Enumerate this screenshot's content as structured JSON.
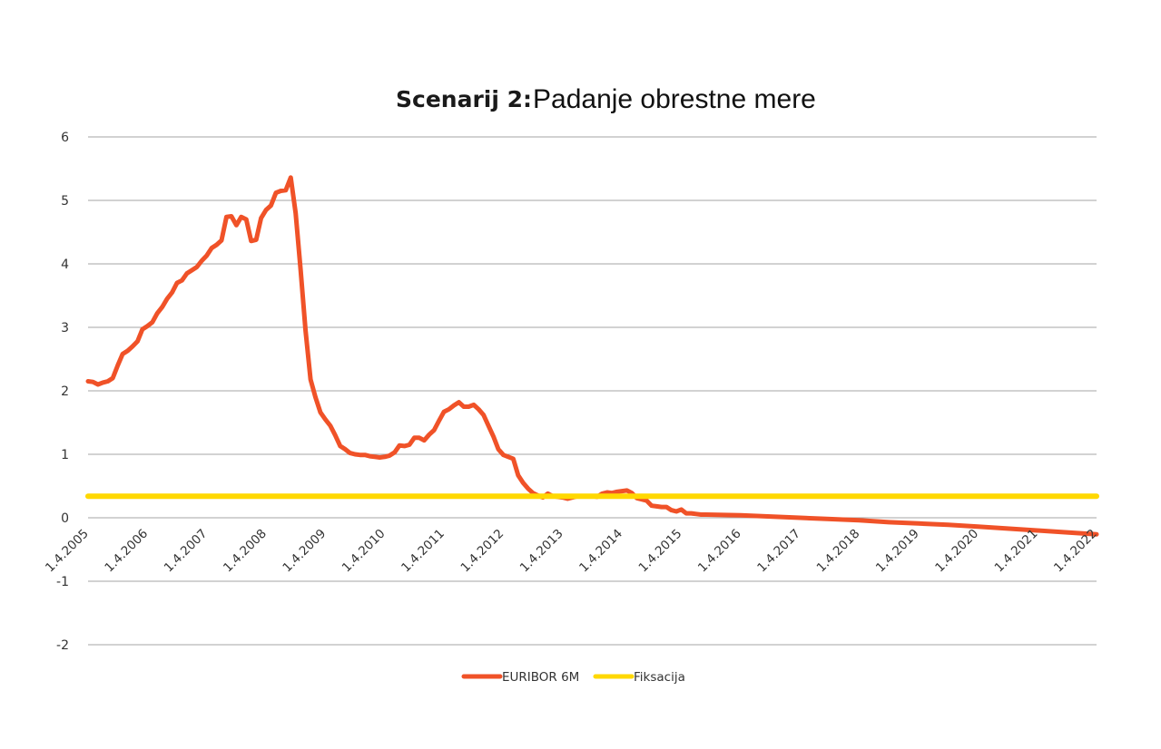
{
  "chart_data": {
    "type": "line",
    "title_prefix": "Scenarij 2:",
    "title_main": "Padanje obrestne mere",
    "xlabel": "",
    "ylabel": "",
    "ylim": [
      -2,
      6
    ],
    "yticks": [
      "6",
      "5",
      "4",
      "3",
      "2",
      "1",
      "0",
      "-1",
      "-2"
    ],
    "xlim": [
      "2005-04",
      "2022-04"
    ],
    "xticks": [
      "1.4.2005",
      "1.4.2006",
      "1.4.2007",
      "1.4.2008",
      "1.4.2009",
      "1.4.2010",
      "1.4.2011",
      "1.4.2012",
      "1.4.2013",
      "1.4.2014",
      "1.4.2015",
      "1.4.2016",
      "1.4.2017",
      "1.4.2018",
      "1.4.2019",
      "1.4.2020",
      "1.4.2021",
      "1.4.2022"
    ],
    "grid": true,
    "legend_position": "bottom",
    "series": [
      {
        "name": "EURIBOR 6M",
        "color": "#f05228",
        "points": [
          [
            "2005-04",
            2.15
          ],
          [
            "2005-05",
            2.14
          ],
          [
            "2005-06",
            2.1
          ],
          [
            "2005-07",
            2.13
          ],
          [
            "2005-08",
            2.15
          ],
          [
            "2005-09",
            2.2
          ],
          [
            "2005-10",
            2.4
          ],
          [
            "2005-11",
            2.58
          ],
          [
            "2005-12",
            2.63
          ],
          [
            "2006-01",
            2.7
          ],
          [
            "2006-02",
            2.78
          ],
          [
            "2006-03",
            2.97
          ],
          [
            "2006-04",
            3.02
          ],
          [
            "2006-05",
            3.08
          ],
          [
            "2006-06",
            3.22
          ],
          [
            "2006-07",
            3.32
          ],
          [
            "2006-08",
            3.45
          ],
          [
            "2006-09",
            3.55
          ],
          [
            "2006-10",
            3.7
          ],
          [
            "2006-11",
            3.74
          ],
          [
            "2006-12",
            3.85
          ],
          [
            "2007-01",
            3.9
          ],
          [
            "2007-02",
            3.95
          ],
          [
            "2007-03",
            4.05
          ],
          [
            "2007-04",
            4.13
          ],
          [
            "2007-05",
            4.25
          ],
          [
            "2007-06",
            4.3
          ],
          [
            "2007-07",
            4.37
          ],
          [
            "2007-08",
            4.74
          ],
          [
            "2007-09",
            4.75
          ],
          [
            "2007-10",
            4.61
          ],
          [
            "2007-11",
            4.74
          ],
          [
            "2007-12",
            4.7
          ],
          [
            "2008-01",
            4.36
          ],
          [
            "2008-02",
            4.38
          ],
          [
            "2008-03",
            4.72
          ],
          [
            "2008-04",
            4.85
          ],
          [
            "2008-05",
            4.92
          ],
          [
            "2008-06",
            5.12
          ],
          [
            "2008-07",
            5.15
          ],
          [
            "2008-08",
            5.16
          ],
          [
            "2008-09",
            5.36
          ],
          [
            "2008-10",
            4.8
          ],
          [
            "2008-11",
            3.9
          ],
          [
            "2008-12",
            2.95
          ],
          [
            "2009-01",
            2.18
          ],
          [
            "2009-02",
            1.9
          ],
          [
            "2009-03",
            1.66
          ],
          [
            "2009-04",
            1.55
          ],
          [
            "2009-05",
            1.45
          ],
          [
            "2009-06",
            1.3
          ],
          [
            "2009-07",
            1.13
          ],
          [
            "2009-08",
            1.08
          ],
          [
            "2009-09",
            1.02
          ],
          [
            "2009-10",
            1.0
          ],
          [
            "2009-11",
            0.99
          ],
          [
            "2009-12",
            0.99
          ],
          [
            "2010-01",
            0.97
          ],
          [
            "2010-02",
            0.96
          ],
          [
            "2010-03",
            0.95
          ],
          [
            "2010-04",
            0.96
          ],
          [
            "2010-05",
            0.98
          ],
          [
            "2010-06",
            1.03
          ],
          [
            "2010-07",
            1.14
          ],
          [
            "2010-08",
            1.13
          ],
          [
            "2010-09",
            1.15
          ],
          [
            "2010-10",
            1.26
          ],
          [
            "2010-11",
            1.26
          ],
          [
            "2010-12",
            1.22
          ],
          [
            "2011-01",
            1.31
          ],
          [
            "2011-02",
            1.38
          ],
          [
            "2011-03",
            1.53
          ],
          [
            "2011-04",
            1.67
          ],
          [
            "2011-05",
            1.71
          ],
          [
            "2011-06",
            1.77
          ],
          [
            "2011-07",
            1.82
          ],
          [
            "2011-08",
            1.75
          ],
          [
            "2011-09",
            1.75
          ],
          [
            "2011-10",
            1.78
          ],
          [
            "2011-11",
            1.71
          ],
          [
            "2011-12",
            1.62
          ],
          [
            "2012-01",
            1.45
          ],
          [
            "2012-02",
            1.28
          ],
          [
            "2012-03",
            1.08
          ],
          [
            "2012-04",
            0.99
          ],
          [
            "2012-05",
            0.96
          ],
          [
            "2012-06",
            0.93
          ],
          [
            "2012-07",
            0.67
          ],
          [
            "2012-08",
            0.55
          ],
          [
            "2012-09",
            0.46
          ],
          [
            "2012-10",
            0.39
          ],
          [
            "2012-11",
            0.35
          ],
          [
            "2012-12",
            0.32
          ],
          [
            "2013-01",
            0.38
          ],
          [
            "2013-02",
            0.34
          ],
          [
            "2013-03",
            0.33
          ],
          [
            "2013-04",
            0.32
          ],
          [
            "2013-05",
            0.3
          ],
          [
            "2013-06",
            0.32
          ],
          [
            "2013-07",
            0.34
          ],
          [
            "2013-08",
            0.34
          ],
          [
            "2013-09",
            0.34
          ],
          [
            "2013-10",
            0.34
          ],
          [
            "2013-11",
            0.33
          ],
          [
            "2013-12",
            0.38
          ],
          [
            "2014-01",
            0.4
          ],
          [
            "2014-02",
            0.39
          ],
          [
            "2014-03",
            0.41
          ],
          [
            "2014-04",
            0.42
          ],
          [
            "2014-05",
            0.43
          ],
          [
            "2014-06",
            0.39
          ],
          [
            "2014-07",
            0.31
          ],
          [
            "2014-08",
            0.29
          ],
          [
            "2014-09",
            0.27
          ],
          [
            "2014-10",
            0.19
          ],
          [
            "2014-11",
            0.18
          ],
          [
            "2014-12",
            0.17
          ],
          [
            "2015-01",
            0.17
          ],
          [
            "2015-02",
            0.12
          ],
          [
            "2015-03",
            0.1
          ],
          [
            "2015-04",
            0.13
          ],
          [
            "2015-05",
            0.07
          ],
          [
            "2015-06",
            0.07
          ],
          [
            "2015-07",
            0.06
          ],
          [
            "2015-08",
            0.05
          ],
          [
            "2015-09",
            0.05
          ],
          [
            "2016-04",
            0.04
          ],
          [
            "2016-10",
            0.02
          ],
          [
            "2017-04",
            0.0
          ],
          [
            "2017-10",
            -0.02
          ],
          [
            "2018-04",
            -0.04
          ],
          [
            "2018-10",
            -0.07
          ],
          [
            "2019-04",
            -0.09
          ],
          [
            "2019-10",
            -0.11
          ],
          [
            "2020-04",
            -0.14
          ],
          [
            "2020-10",
            -0.17
          ],
          [
            "2021-04",
            -0.2
          ],
          [
            "2021-10",
            -0.23
          ],
          [
            "2022-04",
            -0.26
          ]
        ]
      },
      {
        "name": "Fiksacija",
        "color": "#ffd800",
        "points": [
          [
            "2005-04",
            0.34
          ],
          [
            "2022-04",
            0.34
          ]
        ]
      }
    ]
  }
}
